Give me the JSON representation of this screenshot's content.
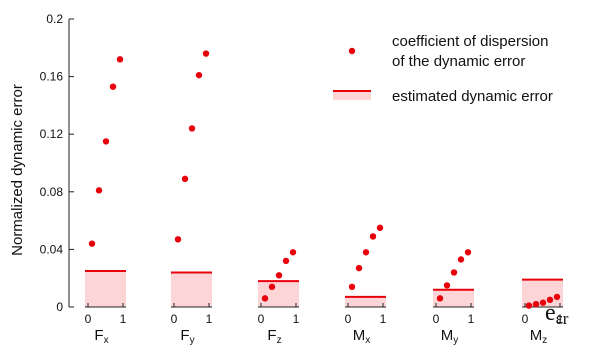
{
  "chart_data": {
    "type": "scatter",
    "ylabel": "Normalized dynamic error",
    "ylim": [
      0,
      0.2
    ],
    "yticks": [
      "0",
      "0.04",
      "0.08",
      "0.12",
      "0.16",
      "0.2"
    ],
    "x_variable": {
      "main": "e",
      "sub": "εr"
    },
    "subplot_xticks": [
      "0",
      "1"
    ],
    "legend": [
      {
        "label_line1": "coefficient of dispersion",
        "label_line2": "of the dynamic error",
        "marker": "dot"
      },
      {
        "label": "estimated dynamic error",
        "marker": "bar-line"
      }
    ],
    "groups": [
      {
        "label_main": "F",
        "label_sub": "x",
        "estimated_error": 0.025,
        "dispersion": {
          "x": [
            0.2,
            0.4,
            0.6,
            0.8,
            1.0
          ],
          "y": [
            0.044,
            0.081,
            0.115,
            0.153,
            0.172
          ]
        }
      },
      {
        "label_main": "F",
        "label_sub": "y",
        "estimated_error": 0.024,
        "dispersion": {
          "x": [
            0.2,
            0.4,
            0.6,
            0.8,
            1.0
          ],
          "y": [
            0.047,
            0.089,
            0.124,
            0.161,
            0.176
          ]
        }
      },
      {
        "label_main": "F",
        "label_sub": "z",
        "estimated_error": 0.018,
        "dispersion": {
          "x": [
            0.2,
            0.4,
            0.6,
            0.8,
            1.0
          ],
          "y": [
            0.006,
            0.014,
            0.022,
            0.032,
            0.038
          ]
        }
      },
      {
        "label_main": "M",
        "label_sub": "x",
        "estimated_error": 0.007,
        "dispersion": {
          "x": [
            0.2,
            0.4,
            0.6,
            0.8,
            1.0
          ],
          "y": [
            0.014,
            0.027,
            0.038,
            0.049,
            0.055
          ]
        }
      },
      {
        "label_main": "M",
        "label_sub": "y",
        "estimated_error": 0.012,
        "dispersion": {
          "x": [
            0.2,
            0.4,
            0.6,
            0.8,
            1.0
          ],
          "y": [
            0.006,
            0.015,
            0.024,
            0.033,
            0.038
          ]
        }
      },
      {
        "label_main": "M",
        "label_sub": "z",
        "estimated_error": 0.019,
        "dispersion": {
          "x": [
            0.2,
            0.4,
            0.6,
            0.8,
            1.0
          ],
          "y": [
            0.001,
            0.002,
            0.003,
            0.005,
            0.007
          ]
        }
      }
    ],
    "colors": {
      "marker": "#e8000b",
      "bar_fill": "#fdd5d7",
      "axis": "#222222"
    }
  }
}
